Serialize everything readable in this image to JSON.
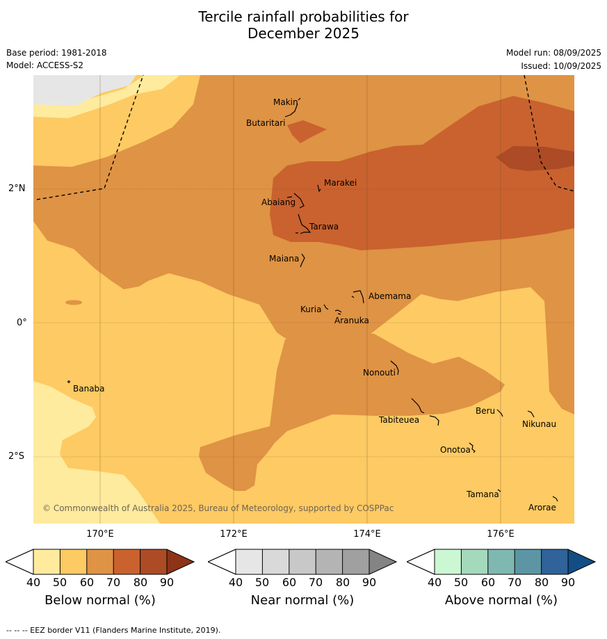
{
  "title_line1": "Tercile rainfall probabilities for",
  "title_line2": "December 2025",
  "base_period": "Base period: 1981-2018",
  "model": "Model: ACCESS-S2",
  "model_run": "Model run: 08/09/2025",
  "issued": "Issued: 10/09/2025",
  "map": {
    "lon_labels": [
      "170°E",
      "172°E",
      "174°E",
      "176°E"
    ],
    "lat_labels": [
      "2°N",
      "0°",
      "2°S"
    ],
    "copyright": "© Commonwealth of Australia 2025, Bureau of Meteorology, supported by COSPPac",
    "places": [
      "Makin",
      "Butaritari",
      "Marakei",
      "Abaiang",
      "Tarawa",
      "Maiana",
      "Abemama",
      "Kuria",
      "Aranuka",
      "Nonouti",
      "Banaba",
      "Tabiteuea",
      "Beru",
      "Nikunau",
      "Onotoa",
      "Tamana",
      "Arorae"
    ]
  },
  "colorbars": {
    "ticks": [
      "40",
      "50",
      "60",
      "70",
      "80",
      "90"
    ],
    "below": {
      "title": "Below normal (%)",
      "colors": [
        "#feeb9e",
        "#fdca63",
        "#df9344",
        "#c9622f",
        "#ac4b26",
        "#8c3318"
      ]
    },
    "near": {
      "title": "Near normal (%)",
      "colors": [
        "#e6e6e6",
        "#d9d9d9",
        "#c8c8c8",
        "#b4b4b4",
        "#a0a0a0",
        "#848484"
      ]
    },
    "above": {
      "title": "Above normal (%)",
      "colors": [
        "#cbf8d2",
        "#a5d9bc",
        "#7fb8b0",
        "#5c95a4",
        "#2f6399",
        "#124e85"
      ]
    }
  },
  "footnote": "-- -- -- EEZ border V11 (Flanders Marine Institute, 2019)."
}
